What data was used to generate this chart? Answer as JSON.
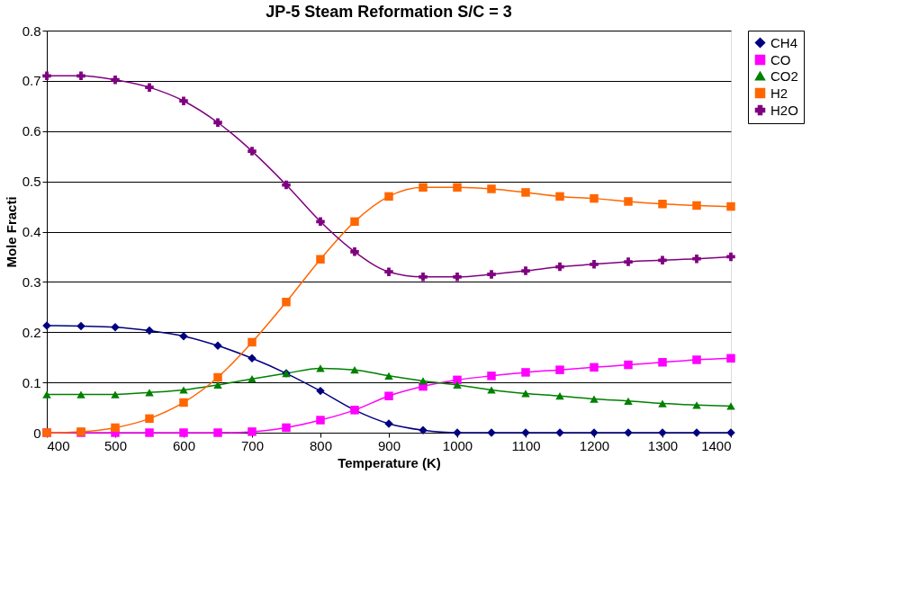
{
  "chart_data": {
    "type": "line",
    "title": "JP-5 Steam Reformation S/C = 3",
    "xlabel": "Temperature (K)",
    "ylabel": "Mole Fracti",
    "x": [
      400,
      450,
      500,
      550,
      600,
      650,
      700,
      750,
      800,
      850,
      900,
      950,
      1000,
      1050,
      1100,
      1150,
      1200,
      1250,
      1300,
      1350,
      1400
    ],
    "series": [
      {
        "name": "CH4",
        "color": "#000080",
        "marker": "diamond",
        "values": [
          0.213,
          0.212,
          0.21,
          0.203,
          0.192,
          0.173,
          0.148,
          0.118,
          0.083,
          0.045,
          0.018,
          0.005,
          0,
          0,
          0,
          0,
          0,
          0,
          0,
          0,
          0
        ]
      },
      {
        "name": "CO",
        "color": "#ff00ff",
        "marker": "square",
        "values": [
          0,
          0,
          0,
          0,
          0,
          0,
          0.002,
          0.01,
          0.025,
          0.045,
          0.073,
          0.092,
          0.105,
          0.113,
          0.12,
          0.125,
          0.13,
          0.135,
          0.14,
          0.145,
          0.148
        ]
      },
      {
        "name": "CO2",
        "color": "#008000",
        "marker": "triangle",
        "values": [
          0.076,
          0.076,
          0.076,
          0.08,
          0.085,
          0.095,
          0.107,
          0.118,
          0.128,
          0.125,
          0.113,
          0.103,
          0.095,
          0.085,
          0.078,
          0.073,
          0.067,
          0.063,
          0.058,
          0.055,
          0.053
        ]
      },
      {
        "name": "H2",
        "color": "#ff6600",
        "marker": "square",
        "values": [
          0,
          0.002,
          0.01,
          0.028,
          0.06,
          0.11,
          0.18,
          0.26,
          0.345,
          0.42,
          0.47,
          0.488,
          0.488,
          0.485,
          0.478,
          0.47,
          0.466,
          0.46,
          0.455,
          0.452,
          0.45
        ]
      },
      {
        "name": "H2O",
        "color": "#800080",
        "marker": "cross",
        "values": [
          0.71,
          0.71,
          0.702,
          0.687,
          0.66,
          0.617,
          0.56,
          0.493,
          0.42,
          0.36,
          0.32,
          0.31,
          0.31,
          0.315,
          0.322,
          0.33,
          0.335,
          0.34,
          0.343,
          0.346,
          0.35
        ]
      }
    ],
    "xlim": [
      400,
      1400
    ],
    "xticks": [
      400,
      500,
      600,
      700,
      800,
      900,
      1000,
      1100,
      1200,
      1300,
      1400
    ],
    "ylim": [
      0,
      0.8
    ],
    "yticks": [
      0,
      0.1,
      0.2,
      0.3,
      0.4,
      0.5,
      0.6,
      0.7,
      0.8
    ],
    "grid": "y",
    "legend": "right",
    "line_style": "solid"
  }
}
